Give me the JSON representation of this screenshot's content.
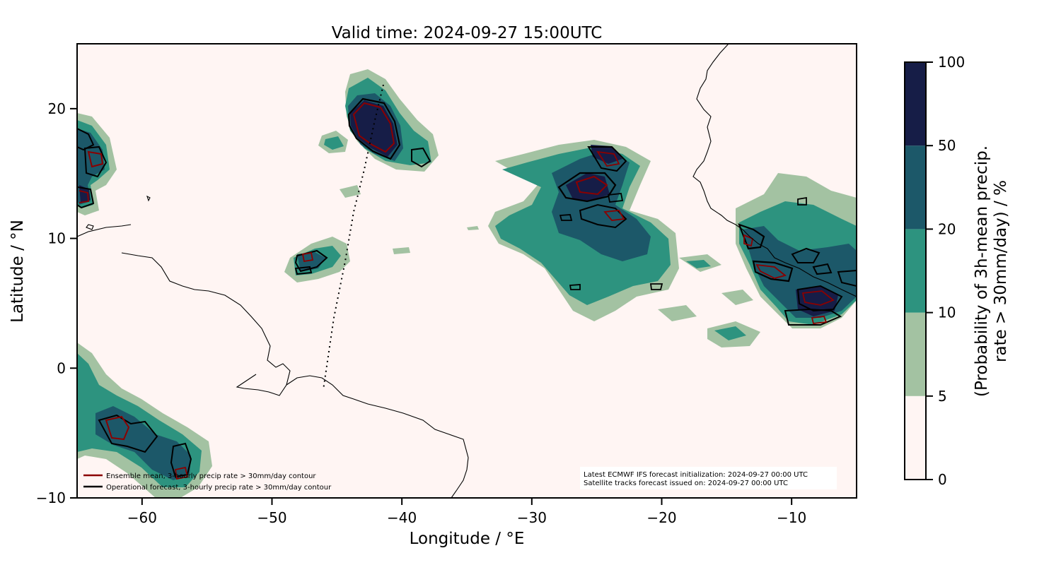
{
  "title": "Valid time: 2024-09-27 15:00UTC",
  "x_axis": {
    "label": "Longitude / °E",
    "ticks": [
      {
        "value": -60,
        "label": "−60"
      },
      {
        "value": -50,
        "label": "−50"
      },
      {
        "value": -40,
        "label": "−40"
      },
      {
        "value": -30,
        "label": "−30"
      },
      {
        "value": -20,
        "label": "−20"
      },
      {
        "value": -10,
        "label": "−10"
      }
    ],
    "range": [
      -65,
      -5
    ]
  },
  "y_axis": {
    "label": "Latitude / °N",
    "ticks": [
      {
        "value": 20,
        "label": "20"
      },
      {
        "value": 10,
        "label": "10"
      },
      {
        "value": 0,
        "label": "0"
      },
      {
        "value": -10,
        "label": "−10"
      }
    ],
    "range": [
      -10,
      25
    ]
  },
  "legend": {
    "placement": "bottom-left",
    "entries": [
      {
        "label": "Ensemble mean, 3-hourly precip rate > 30mm/day contour",
        "color": "#8b0000"
      },
      {
        "label": "Operational forecast, 3-hourly precip rate > 30mm/day contour",
        "color": "#000000"
      }
    ]
  },
  "info_box": {
    "lines": [
      "Latest ECMWF IFS forecast initialization: 2024-09-27 00:00 UTC",
      "Satellite tracks forecast issued on: 2024-09-27 00:00 UTC"
    ]
  },
  "colorbar": {
    "label_line1": "(Probability of 3h-mean precip.",
    "label_line2": "rate > 30mm/day) / %",
    "bands": [
      {
        "from": 0,
        "to": 5,
        "color": "#fff5f3"
      },
      {
        "from": 5,
        "to": 10,
        "color": "#a3c2a2"
      },
      {
        "from": 10,
        "to": 20,
        "color": "#2d937f"
      },
      {
        "from": 20,
        "to": 50,
        "color": "#1c5869"
      },
      {
        "from": 50,
        "to": 100,
        "color": "#161d47"
      }
    ],
    "tick_labels": [
      "0",
      "5",
      "10",
      "20",
      "50",
      "100"
    ]
  },
  "colors": {
    "background": "#fff5f3",
    "coastline": "#000000",
    "ensemble_contour": "#8b0000",
    "operational_contour": "#000000",
    "satellite_track": "#000000"
  }
}
